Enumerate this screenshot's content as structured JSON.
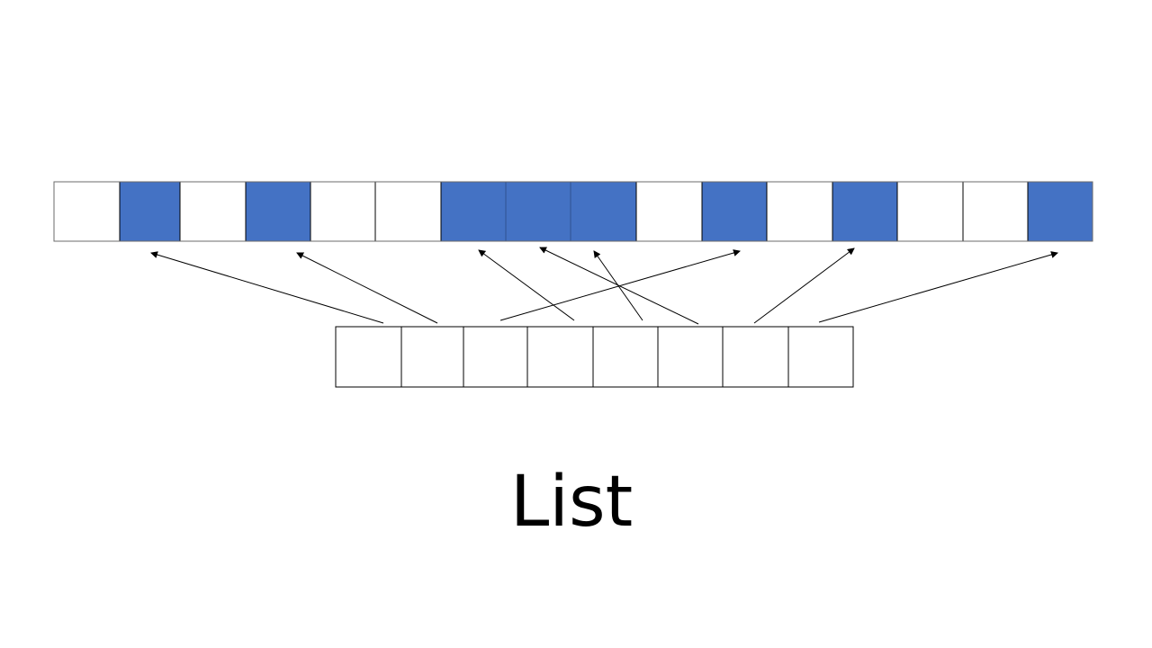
{
  "slide": {
    "title": "List"
  },
  "memory": {
    "cells": [
      false,
      true,
      false,
      true,
      false,
      false,
      true,
      true,
      true,
      false,
      true,
      false,
      true,
      false,
      false,
      true
    ]
  },
  "list": {
    "cell_count": 8
  },
  "pointers": [
    {
      "from": 0,
      "to": 1
    },
    {
      "from": 1,
      "to": 3
    },
    {
      "from": 2,
      "to": 10
    },
    {
      "from": 3,
      "to": 6
    },
    {
      "from": 4,
      "to": 8
    },
    {
      "from": 5,
      "to": 7
    },
    {
      "from": 6,
      "to": 12
    },
    {
      "from": 7,
      "to": 15
    }
  ],
  "colors": {
    "filled": "#4472C4",
    "empty": "#FFFFFF",
    "stroke": "#000000",
    "grid_between_filled": "#2F528F"
  }
}
